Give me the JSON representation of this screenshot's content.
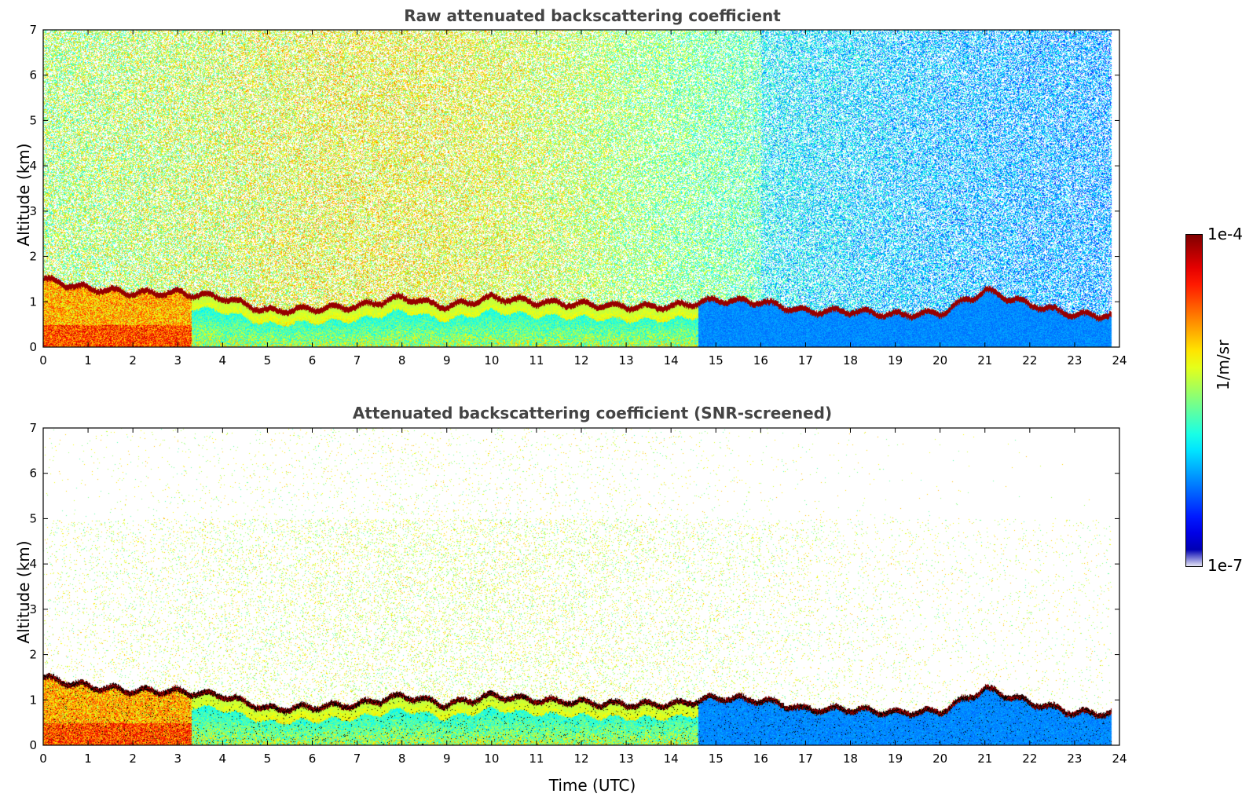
{
  "chart_data": [
    {
      "type": "heatmap",
      "title": "Raw attenuated backscattering coefficient",
      "xlabel": "",
      "ylabel": "Altitude (km)",
      "xlim": [
        0,
        24
      ],
      "ylim": [
        0,
        7
      ],
      "xticks": [
        "0",
        "1",
        "2",
        "3",
        "4",
        "5",
        "6",
        "7",
        "8",
        "9",
        "10",
        "11",
        "12",
        "13",
        "14",
        "15",
        "16",
        "17",
        "18",
        "19",
        "20",
        "21",
        "22",
        "23",
        "24"
      ],
      "yticks": [
        "0",
        "1",
        "2",
        "3",
        "4",
        "5",
        "6",
        "7"
      ],
      "data_end_time": 23.8,
      "cloud_layer_top_km": [
        [
          0,
          1.5
        ],
        [
          1,
          1.3
        ],
        [
          2,
          1.2
        ],
        [
          3,
          1.2
        ],
        [
          4,
          1.1
        ],
        [
          5,
          0.8
        ],
        [
          6,
          0.85
        ],
        [
          7,
          0.9
        ],
        [
          8,
          1.1
        ],
        [
          9,
          0.9
        ],
        [
          10,
          1.1
        ],
        [
          11,
          1.0
        ],
        [
          12,
          0.95
        ],
        [
          13,
          0.9
        ],
        [
          14,
          0.9
        ],
        [
          15,
          1.05
        ],
        [
          16,
          1.0
        ],
        [
          17,
          0.8
        ],
        [
          18,
          0.8
        ],
        [
          19,
          0.72
        ],
        [
          20,
          0.75
        ],
        [
          21,
          1.25
        ],
        [
          22,
          0.95
        ],
        [
          23,
          0.72
        ],
        [
          23.8,
          0.7
        ]
      ],
      "screened": false
    },
    {
      "type": "heatmap",
      "title": "Attenuated backscattering coefficient (SNR-screened)",
      "xlabel": "Time (UTC)",
      "ylabel": "Altitude (km)",
      "xlim": [
        0,
        24
      ],
      "ylim": [
        0,
        7
      ],
      "xticks": [
        "0",
        "1",
        "2",
        "3",
        "4",
        "5",
        "6",
        "7",
        "8",
        "9",
        "10",
        "11",
        "12",
        "13",
        "14",
        "15",
        "16",
        "17",
        "18",
        "19",
        "20",
        "21",
        "22",
        "23",
        "24"
      ],
      "yticks": [
        "0",
        "1",
        "2",
        "3",
        "4",
        "5",
        "6",
        "7"
      ],
      "data_end_time": 23.8,
      "screened": true
    }
  ],
  "colorbar": {
    "max_label": "1e-4",
    "min_label": "1e-7",
    "unit_label": "1/m/sr",
    "colormap": "jet",
    "scale": "log"
  }
}
